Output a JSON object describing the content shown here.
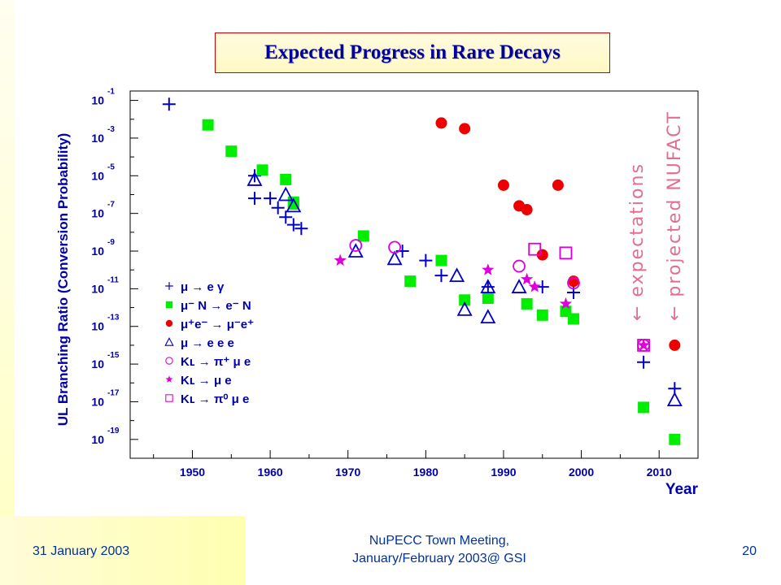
{
  "slide": {
    "title": "Expected Progress in Rare Decays",
    "footer": {
      "date": "31 January 2003",
      "center_line1": "NuPECC Town Meeting,",
      "center_line2": "January/February 2003@ GSI",
      "page": "20"
    }
  },
  "colors": {
    "blue": "#0000cc",
    "green": "#00ee00",
    "red": "#ee0000",
    "magenta": "#dd00dd",
    "title": "#000099",
    "footer": "#003399"
  },
  "chart_data": {
    "type": "scatter",
    "xlabel": "Year",
    "ylabel": "UL Branching Ratio (Conversion Probability)",
    "xlim": [
      1942,
      2015
    ],
    "ylim_log10": [
      -20,
      -0.5
    ],
    "y_scale": "log",
    "x_ticks": [
      1950,
      1960,
      1970,
      1980,
      1990,
      2000,
      2010
    ],
    "y_tick_exponents": [
      -1,
      -3,
      -5,
      -7,
      -9,
      -11,
      -13,
      -15,
      -17,
      -19
    ],
    "side_annotations": [
      "← expectations",
      "← projected NUFACT"
    ],
    "legend": [
      {
        "marker": "plus",
        "color": "#0000cc",
        "label": "μ → e γ"
      },
      {
        "marker": "square",
        "color": "#00ee00",
        "label": "μ⁻ N → e⁻ N"
      },
      {
        "marker": "circle",
        "color": "#ee0000",
        "label": "μ⁺e⁻ → μ⁻e⁺"
      },
      {
        "marker": "triangle",
        "color": "#0000cc",
        "label": "μ → e e e"
      },
      {
        "marker": "ocircle",
        "color": "#dd00dd",
        "label": "Kʟ → π⁺ μ e"
      },
      {
        "marker": "star",
        "color": "#dd00dd",
        "label": "Kʟ → μ e"
      },
      {
        "marker": "osquare",
        "color": "#dd00dd",
        "label": "Kʟ → π⁰ μ e"
      }
    ],
    "series": [
      {
        "marker": "plus",
        "color": "#0000cc",
        "points": [
          [
            1947,
            -1.2
          ],
          [
            1958,
            -5.0
          ],
          [
            1958,
            -6.2
          ],
          [
            1960,
            -6.2
          ],
          [
            1961,
            -6.7
          ],
          [
            1962,
            -7.2
          ],
          [
            1963,
            -7.6
          ],
          [
            1964,
            -7.8
          ],
          [
            1977,
            -9.0
          ],
          [
            1980,
            -9.5
          ],
          [
            1982,
            -10.3
          ],
          [
            1988,
            -10.9
          ],
          [
            1995,
            -10.9
          ],
          [
            1999,
            -11.2
          ],
          [
            2008,
            -14.9
          ],
          [
            2012,
            -16.3
          ]
        ]
      },
      {
        "marker": "square",
        "color": "#00ee00",
        "points": [
          [
            1952,
            -2.3
          ],
          [
            1955,
            -3.7
          ],
          [
            1959,
            -4.7
          ],
          [
            1962,
            -5.2
          ],
          [
            1963,
            -6.4
          ],
          [
            1963,
            -6.5
          ],
          [
            1972,
            -8.2
          ],
          [
            1978,
            -10.6
          ],
          [
            1982,
            -9.5
          ],
          [
            1985,
            -11.6
          ],
          [
            1988,
            -11.5
          ],
          [
            1993,
            -11.8
          ],
          [
            1995,
            -12.4
          ],
          [
            1998,
            -12.2
          ],
          [
            1999,
            -12.6
          ],
          [
            2008,
            -17.3
          ],
          [
            2012,
            -19.0
          ]
        ]
      },
      {
        "marker": "circle",
        "color": "#ee0000",
        "points": [
          [
            1982,
            -2.2
          ],
          [
            1985,
            -2.5
          ],
          [
            1990,
            -5.5
          ],
          [
            1992,
            -6.6
          ],
          [
            1993,
            -6.8
          ],
          [
            1995,
            -9.2
          ],
          [
            1997,
            -5.5
          ],
          [
            1999,
            -10.6
          ],
          [
            2012,
            -14.0
          ]
        ]
      },
      {
        "marker": "triangle",
        "color": "#0000cc",
        "points": [
          [
            1958,
            -5.2
          ],
          [
            1962,
            -6.0
          ],
          [
            1963,
            -6.6
          ],
          [
            1971,
            -9.0
          ],
          [
            1976,
            -9.4
          ],
          [
            1984,
            -10.3
          ],
          [
            1985,
            -12.1
          ],
          [
            1988,
            -10.9
          ],
          [
            1988,
            -12.5
          ],
          [
            1992,
            -10.9
          ],
          [
            2012,
            -16.9
          ]
        ]
      },
      {
        "marker": "ocircle",
        "color": "#dd00dd",
        "points": [
          [
            1971,
            -8.7
          ],
          [
            1976,
            -8.8
          ],
          [
            1992,
            -9.8
          ],
          [
            1999,
            -10.7
          ],
          [
            2008,
            -14.0
          ]
        ]
      },
      {
        "marker": "star",
        "color": "#dd00dd",
        "points": [
          [
            1969,
            -9.5
          ],
          [
            1988,
            -10.0
          ],
          [
            1993,
            -10.5
          ],
          [
            1994,
            -10.9
          ],
          [
            1998,
            -11.8
          ],
          [
            2008,
            -14.0
          ]
        ]
      },
      {
        "marker": "osquare",
        "color": "#dd00dd",
        "points": [
          [
            1994,
            -8.9
          ],
          [
            1998,
            -9.1
          ],
          [
            2008,
            -14.0
          ]
        ]
      }
    ]
  }
}
